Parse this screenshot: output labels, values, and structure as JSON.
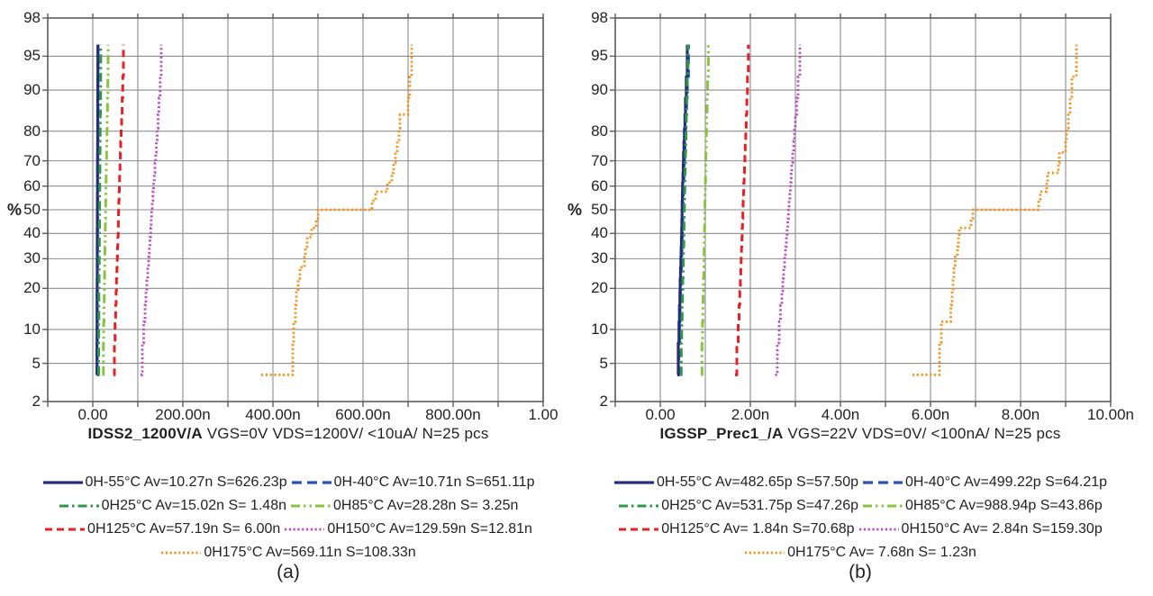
{
  "figure": {
    "background": "#ffffff",
    "text_color": "#231f20",
    "grid_color": "#8a8c8f",
    "border_color": "#5a5b5e"
  },
  "chart_data": [
    {
      "type": "line",
      "subtype": "cumulative-probability-step-cdf",
      "caption": "(a)",
      "ylabel": "%",
      "xlabel_bold": "IDSS2_1200V/A",
      "xlabel_rest": " VGS=0V VDS=1200V/ <10uA/ N=25 pcs",
      "x_unit": "nA",
      "xlim": [
        -100,
        1000
      ],
      "x_grid_step": 100,
      "x_ticks": [
        {
          "v": 0,
          "label": "0.00"
        },
        {
          "v": 200,
          "label": "200.00n"
        },
        {
          "v": 400,
          "label": "400.00n"
        },
        {
          "v": 600,
          "label": "600.00n"
        },
        {
          "v": 800,
          "label": "800.00n"
        },
        {
          "v": 1000,
          "label": "1.00"
        }
      ],
      "y_scale": "probit",
      "ylim_pct": [
        2,
        98
      ],
      "y_ticks": [
        98,
        95,
        90,
        80,
        70,
        60,
        50,
        40,
        30,
        20,
        10,
        5,
        2
      ],
      "n_samples": 25,
      "legend_rows": [
        [
          0,
          1
        ],
        [
          2,
          3
        ],
        [
          4,
          5
        ],
        [
          6
        ]
      ],
      "series": [
        {
          "name": "0H-55C",
          "label": "0H-55°C Av=10.27n S=626.23p",
          "color": "#262e7c",
          "dash": "solid",
          "width": 3.2,
          "values": [
            9.2,
            9.35,
            9.5,
            9.6,
            9.7,
            9.8,
            9.9,
            9.95,
            10.0,
            10.05,
            10.1,
            10.2,
            10.27,
            10.35,
            10.4,
            10.5,
            10.55,
            10.6,
            10.7,
            10.8,
            10.9,
            11.0,
            11.1,
            11.25,
            11.4
          ]
        },
        {
          "name": "0H-40C",
          "label": "0H-40°C Av=10.71n S=651.11p",
          "color": "#2b50b8",
          "dash": "11,6",
          "width": 3.2,
          "values": [
            9.6,
            9.75,
            9.9,
            10.0,
            10.1,
            10.2,
            10.3,
            10.35,
            10.45,
            10.5,
            10.55,
            10.65,
            10.71,
            10.8,
            10.85,
            10.95,
            11.0,
            11.05,
            11.15,
            11.25,
            11.35,
            11.45,
            11.55,
            11.7,
            11.85
          ]
        },
        {
          "name": "0H25C",
          "label": "0H25°C Av=15.02n S= 1.48n",
          "color": "#2e9748",
          "dash": "10,4,2.5,4",
          "width": 3,
          "values": [
            12.5,
            12.9,
            13.2,
            13.5,
            13.7,
            13.9,
            14.1,
            14.3,
            14.5,
            14.6,
            14.8,
            14.9,
            15.0,
            15.2,
            15.3,
            15.5,
            15.6,
            15.8,
            16.0,
            16.2,
            16.4,
            16.7,
            17.0,
            17.3,
            17.6
          ]
        },
        {
          "name": "0H85C",
          "label": "0H85°C Av=28.28n S= 3.25n",
          "color": "#8ac341",
          "dash": "10,4,2.5,4,2.5,4",
          "width": 3,
          "values": [
            22.5,
            23.5,
            24.2,
            24.8,
            25.3,
            25.8,
            26.2,
            26.6,
            27.0,
            27.4,
            27.7,
            28.0,
            28.3,
            28.6,
            28.9,
            29.3,
            29.7,
            30.1,
            30.5,
            31.0,
            31.5,
            32.1,
            32.7,
            33.4,
            34.1
          ]
        },
        {
          "name": "0H125C",
          "label": "0H125°C Av=57.19n S= 6.00n",
          "color": "#e32228",
          "dash": "8,5",
          "width": 3,
          "values": [
            46,
            48,
            49.5,
            50.8,
            51.8,
            52.7,
            53.5,
            54.3,
            55.0,
            55.7,
            56.3,
            56.9,
            57.2,
            57.8,
            58.4,
            59.0,
            59.7,
            60.4,
            61.2,
            62.0,
            63.0,
            64.0,
            65.2,
            66.5,
            68.0
          ]
        },
        {
          "name": "0H150C",
          "label": "0H150°C Av=129.59n S=12.81n",
          "color": "#bb4bc4",
          "dash": "2.2,2.6",
          "width": 2.8,
          "values": [
            106,
            110,
            113,
            116,
            118,
            120,
            122,
            124,
            125.5,
            127,
            128.5,
            129.5,
            130.5,
            132,
            133.5,
            135,
            136.5,
            138,
            139.5,
            141,
            143,
            145,
            147,
            149.5,
            152
          ]
        },
        {
          "name": "0H175C",
          "label": "0H175°C Av=569.11n S=108.33n",
          "color": "#f2941d",
          "dash": "2.2,2.6",
          "width": 2.8,
          "values": [
            374,
            444,
            446,
            450,
            452,
            456,
            460,
            470,
            472,
            476,
            486,
            496,
            500,
            620,
            628,
            654,
            664,
            668,
            672,
            676,
            680,
            682,
            700,
            704,
            708
          ]
        }
      ]
    },
    {
      "type": "line",
      "subtype": "cumulative-probability-step-cdf",
      "caption": "(b)",
      "ylabel": "%",
      "xlabel_bold": "IGSSP_Prec1_/A",
      "xlabel_rest": " VGS=22V VDS=0V/ <100nA/ N=25 pcs",
      "x_unit": "nA",
      "xlim": [
        -1,
        10
      ],
      "x_grid_step": 1,
      "x_ticks": [
        {
          "v": 0,
          "label": "0.00"
        },
        {
          "v": 2,
          "label": "2.00n"
        },
        {
          "v": 4,
          "label": "4.00n"
        },
        {
          "v": 6,
          "label": "6.00n"
        },
        {
          "v": 8,
          "label": "8.00n"
        },
        {
          "v": 10,
          "label": "10.00n"
        }
      ],
      "y_scale": "probit",
      "ylim_pct": [
        2,
        98
      ],
      "y_ticks": [
        98,
        95,
        90,
        80,
        70,
        60,
        50,
        40,
        30,
        20,
        10,
        5,
        2
      ],
      "n_samples": 25,
      "legend_rows": [
        [
          0,
          1
        ],
        [
          2,
          3
        ],
        [
          4,
          5
        ],
        [
          6
        ]
      ],
      "series": [
        {
          "name": "0H-55C",
          "label": "0H-55°C Av=482.65p S=57.50p",
          "color": "#262e7c",
          "dash": "solid",
          "width": 3.2,
          "values": [
            0.38,
            0.4,
            0.415,
            0.425,
            0.435,
            0.443,
            0.45,
            0.457,
            0.463,
            0.47,
            0.476,
            0.48,
            0.483,
            0.487,
            0.492,
            0.497,
            0.503,
            0.51,
            0.517,
            0.525,
            0.535,
            0.547,
            0.56,
            0.578,
            0.6
          ]
        },
        {
          "name": "0H-40C",
          "label": "0H-40°C Av=499.22p S=64.21p",
          "color": "#2b50b8",
          "dash": "11,6",
          "width": 3.2,
          "values": [
            0.39,
            0.41,
            0.427,
            0.438,
            0.448,
            0.457,
            0.465,
            0.472,
            0.478,
            0.485,
            0.491,
            0.496,
            0.5,
            0.504,
            0.509,
            0.515,
            0.521,
            0.528,
            0.536,
            0.545,
            0.555,
            0.567,
            0.582,
            0.6,
            0.625
          ]
        },
        {
          "name": "0H25C",
          "label": "0H25°C Av=531.75p S=47.26p",
          "color": "#2e9748",
          "dash": "10,4,2.5,4",
          "width": 3,
          "values": [
            0.45,
            0.465,
            0.477,
            0.486,
            0.494,
            0.5,
            0.506,
            0.511,
            0.516,
            0.521,
            0.525,
            0.529,
            0.532,
            0.536,
            0.54,
            0.544,
            0.548,
            0.553,
            0.558,
            0.564,
            0.57,
            0.578,
            0.588,
            0.6,
            0.615
          ]
        },
        {
          "name": "0H85C",
          "label": "0H85°C Av=988.94p S=43.86p",
          "color": "#8ac341",
          "dash": "10,4,2.5,4,2.5,4",
          "width": 3,
          "values": [
            0.91,
            0.925,
            0.937,
            0.946,
            0.953,
            0.959,
            0.965,
            0.97,
            0.974,
            0.978,
            0.982,
            0.986,
            0.989,
            0.992,
            0.996,
            1.0,
            1.004,
            1.008,
            1.013,
            1.018,
            1.024,
            1.031,
            1.04,
            1.052,
            1.068
          ]
        },
        {
          "name": "0H125C",
          "label": "0H125°C Av= 1.84n S=70.68p",
          "color": "#e32228",
          "dash": "8,5",
          "width": 3,
          "values": [
            1.66,
            1.7,
            1.73,
            1.75,
            1.765,
            1.778,
            1.788,
            1.797,
            1.805,
            1.812,
            1.819,
            1.826,
            1.833,
            1.84,
            1.847,
            1.854,
            1.862,
            1.87,
            1.878,
            1.887,
            1.897,
            1.908,
            1.921,
            1.937,
            1.957
          ]
        },
        {
          "name": "0H150C",
          "label": "0H150°C Av= 2.84n S=159.30p",
          "color": "#bb4bc4",
          "dash": "2.2,2.6",
          "width": 2.8,
          "values": [
            2.55,
            2.6,
            2.64,
            2.67,
            2.7,
            2.72,
            2.74,
            2.76,
            2.78,
            2.8,
            2.815,
            2.83,
            2.845,
            2.86,
            2.875,
            2.89,
            2.905,
            2.92,
            2.94,
            2.96,
            2.98,
            3.0,
            3.03,
            3.06,
            3.1
          ]
        },
        {
          "name": "0H175C",
          "label": "0H175°C Av= 7.68n S= 1.23n",
          "color": "#f2941d",
          "dash": "2.2,2.6",
          "width": 2.8,
          "values": [
            5.6,
            6.2,
            6.24,
            6.45,
            6.48,
            6.5,
            6.52,
            6.55,
            6.6,
            6.62,
            6.64,
            6.9,
            6.94,
            8.4,
            8.44,
            8.58,
            8.6,
            8.84,
            8.86,
            9.0,
            9.02,
            9.06,
            9.1,
            9.14,
            9.24
          ]
        }
      ]
    }
  ]
}
